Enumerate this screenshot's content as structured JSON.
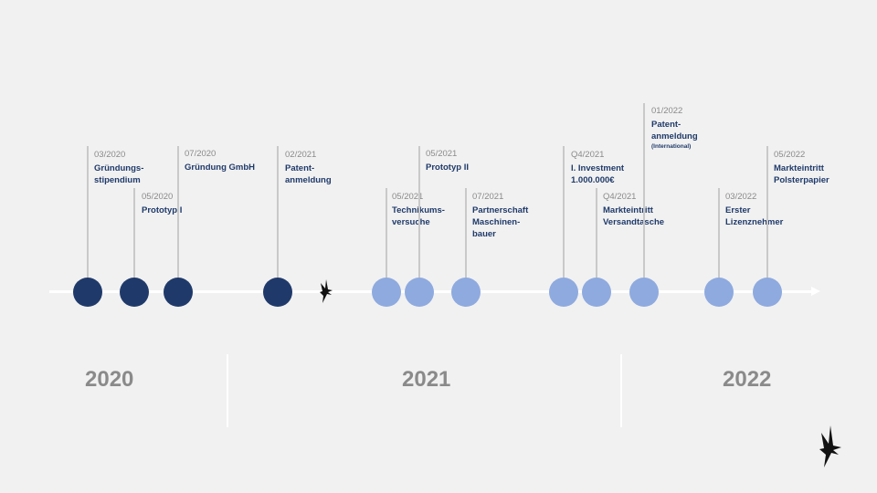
{
  "milestones": [
    {
      "date": "03/2020",
      "title": "Gründungs-\nstipendium",
      "note": "",
      "color": "dark"
    },
    {
      "date": "05/2020",
      "title": "Prototyp I",
      "note": "",
      "color": "dark"
    },
    {
      "date": "07/2020",
      "title": "Gründung GmbH",
      "note": "",
      "color": "dark"
    },
    {
      "date": "02/2021",
      "title": "Patent-\nanmeldung",
      "note": "",
      "color": "dark"
    },
    {
      "date": "05/2021",
      "title": "Technikums-\nversuche",
      "note": "",
      "color": "light"
    },
    {
      "date": "05/2021",
      "title": "Prototyp II",
      "note": "",
      "color": "light"
    },
    {
      "date": "07/2021",
      "title": "Partnerschaft\nMaschinen-\nbauer",
      "note": "",
      "color": "light"
    },
    {
      "date": "Q4/2021",
      "title": "I. Investment\n1.000.000€",
      "note": "",
      "color": "light"
    },
    {
      "date": "Q4/2021",
      "title": "Markteintritt\nVersandtasche",
      "note": "",
      "color": "light"
    },
    {
      "date": "01/2022",
      "title": "Patent-\nanmeldung",
      "note": "(International)",
      "color": "light"
    },
    {
      "date": "03/2022",
      "title": "Erster\nLizenznehmer",
      "note": "",
      "color": "light"
    },
    {
      "date": "05/2022",
      "title": "Markteintritt\nPolsterpapier",
      "note": "",
      "color": "light"
    }
  ],
  "years": [
    "2020",
    "2021",
    "2022"
  ],
  "colors": {
    "dark": "#1f3a6a",
    "light": "#8eaadf",
    "stem": "#c9c9c9",
    "year": "#8a8a8a"
  },
  "icons": [
    "hummingbird-icon",
    "hummingbird-logo-icon"
  ]
}
